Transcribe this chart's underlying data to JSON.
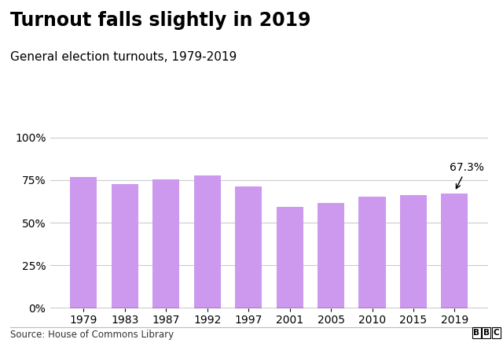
{
  "years": [
    "1979",
    "1983",
    "1987",
    "1992",
    "1997",
    "2001",
    "2005",
    "2010",
    "2015",
    "2019"
  ],
  "values": [
    76.8,
    72.7,
    75.3,
    77.7,
    71.4,
    59.4,
    61.4,
    65.1,
    66.1,
    67.3
  ],
  "bar_color": "#cc99ee",
  "title": "Turnout falls slightly in 2019",
  "subtitle": "General election turnouts, 1979-2019",
  "title_fontsize": 17,
  "subtitle_fontsize": 11,
  "yticks": [
    0,
    25,
    50,
    75,
    100
  ],
  "ylim": [
    0,
    108
  ],
  "annotation_label": "67.3%",
  "annotation_bar_index": 9,
  "source_text": "Source: House of Commons Library",
  "bbc_text": "BBC",
  "background_color": "#ffffff",
  "grid_color": "#cccccc",
  "axis_label_fontsize": 10,
  "annotation_fontsize": 10
}
